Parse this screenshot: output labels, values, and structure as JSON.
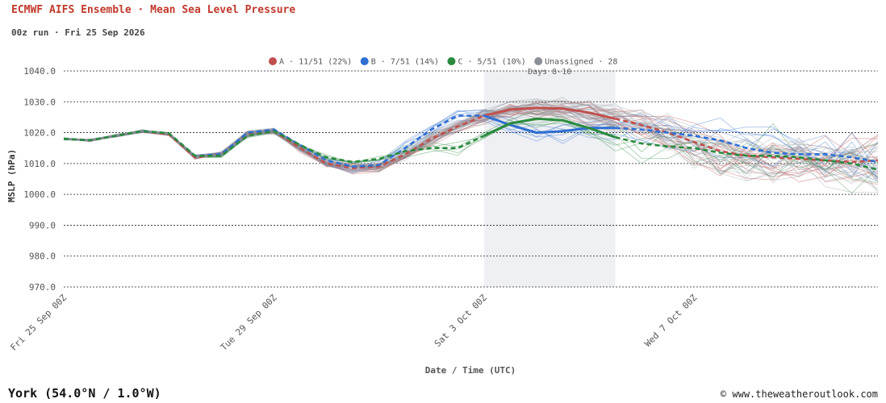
{
  "header": {
    "title": "ECMWF AIFS Ensemble · Mean Sea Level Pressure",
    "subtitle": "00z run · Fri 25 Sep 2026"
  },
  "footer": {
    "location": "York (54.0°N / 1.0°W)",
    "credit": "© www.theweatheroutlook.com"
  },
  "colors": {
    "A": "#c0504d",
    "B": "#2f6fd1",
    "C": "#2b8a3e",
    "unassigned": "#8a8f98",
    "shade": "#eef0f3"
  },
  "chart_data": {
    "type": "line",
    "ylabel": "MSLP (hPa)",
    "xlabel": "Date / Time (UTC)",
    "ylim": [
      970,
      1040
    ],
    "xlim": [
      "2026-09-25T00:00Z",
      "2026-10-10T12:00Z"
    ],
    "y_ticks": [
      "970.0",
      "980.0",
      "990.0",
      "1000.0",
      "1010.0",
      "1020.0",
      "1030.0",
      "1040.0"
    ],
    "x_ticks": [
      {
        "label": "Fri 25 Sep 00Z",
        "t": "2026-09-25T00:00Z"
      },
      {
        "label": "Tue 29 Sep 00Z",
        "t": "2026-09-29T00:00Z"
      },
      {
        "label": "Sat 3 Oct 00Z",
        "t": "2026-10-03T00:00Z"
      },
      {
        "label": "Wed 7 Oct 00Z",
        "t": "2026-10-07T00:00Z"
      }
    ],
    "grid": "horizontal dotted",
    "legend_placement": "top-center",
    "legend": [
      {
        "key": "A",
        "label": "A · 11/51 (22%)"
      },
      {
        "key": "B",
        "label": "B · 7/51 (14%)"
      },
      {
        "key": "C",
        "label": "C · 5/51 (10%)"
      },
      {
        "key": "unassigned",
        "label": "Unassigned · 28"
      }
    ],
    "shaded_region": {
      "label": "Days 8-10",
      "start": "2026-10-03T00:00Z",
      "end": "2026-10-05T12:00Z"
    },
    "cluster_means": [
      {
        "key": "A",
        "points": [
          [
            "2026-09-25T00:00Z",
            1018
          ],
          [
            "2026-09-25T12:00Z",
            1017.5
          ],
          [
            "2026-09-26T00:00Z",
            1019
          ],
          [
            "2026-09-26T12:00Z",
            1020.5
          ],
          [
            "2026-09-27T00:00Z",
            1019.5
          ],
          [
            "2026-09-27T12:00Z",
            1012
          ],
          [
            "2026-09-28T00:00Z",
            1013
          ],
          [
            "2026-09-28T12:00Z",
            1019.5
          ],
          [
            "2026-09-29T00:00Z",
            1020.5
          ],
          [
            "2026-09-29T12:00Z",
            1015
          ],
          [
            "2026-09-30T00:00Z",
            1010
          ],
          [
            "2026-09-30T12:00Z",
            1008.5
          ],
          [
            "2026-10-01T00:00Z",
            1009
          ],
          [
            "2026-10-01T12:00Z",
            1013
          ],
          [
            "2026-10-02T00:00Z",
            1018
          ],
          [
            "2026-10-02T12:00Z",
            1022
          ],
          [
            "2026-10-03T00:00Z",
            1025.5
          ],
          [
            "2026-10-03T12:00Z",
            1027.5
          ],
          [
            "2026-10-04T00:00Z",
            1028
          ],
          [
            "2026-10-04T12:00Z",
            1027.8
          ],
          [
            "2026-10-05T00:00Z",
            1026.5
          ],
          [
            "2026-10-05T12:00Z",
            1024.5
          ],
          [
            "2026-10-06T00:00Z",
            1022.5
          ],
          [
            "2026-10-06T12:00Z",
            1020
          ],
          [
            "2026-10-07T00:00Z",
            1017
          ],
          [
            "2026-10-07T12:00Z",
            1014
          ],
          [
            "2026-10-08T00:00Z",
            1012.5
          ],
          [
            "2026-10-08T12:00Z",
            1012
          ],
          [
            "2026-10-09T00:00Z",
            1011.5
          ],
          [
            "2026-10-09T12:00Z",
            1011
          ],
          [
            "2026-10-10T00:00Z",
            1010.5
          ],
          [
            "2026-10-10T12:00Z",
            1011
          ]
        ]
      },
      {
        "key": "B",
        "points": [
          [
            "2026-09-25T00:00Z",
            1018
          ],
          [
            "2026-09-25T12:00Z",
            1017.5
          ],
          [
            "2026-09-26T00:00Z",
            1019
          ],
          [
            "2026-09-26T12:00Z",
            1020.5
          ],
          [
            "2026-09-27T00:00Z",
            1019.8
          ],
          [
            "2026-09-27T12:00Z",
            1012.5
          ],
          [
            "2026-09-28T00:00Z",
            1013
          ],
          [
            "2026-09-28T12:00Z",
            1020
          ],
          [
            "2026-09-29T00:00Z",
            1021
          ],
          [
            "2026-09-29T12:00Z",
            1016
          ],
          [
            "2026-09-30T00:00Z",
            1011
          ],
          [
            "2026-09-30T12:00Z",
            1009
          ],
          [
            "2026-10-01T00:00Z",
            1009.5
          ],
          [
            "2026-10-01T12:00Z",
            1015
          ],
          [
            "2026-10-02T00:00Z",
            1021
          ],
          [
            "2026-10-02T12:00Z",
            1025.5
          ],
          [
            "2026-10-03T00:00Z",
            1025.5
          ],
          [
            "2026-10-03T12:00Z",
            1022.5
          ],
          [
            "2026-10-04T00:00Z",
            1020
          ],
          [
            "2026-10-04T12:00Z",
            1020.5
          ],
          [
            "2026-10-05T00:00Z",
            1021.5
          ],
          [
            "2026-10-05T12:00Z",
            1021.5
          ],
          [
            "2026-10-06T00:00Z",
            1021
          ],
          [
            "2026-10-06T12:00Z",
            1020
          ],
          [
            "2026-10-07T00:00Z",
            1019
          ],
          [
            "2026-10-07T12:00Z",
            1017.5
          ],
          [
            "2026-10-08T00:00Z",
            1015
          ],
          [
            "2026-10-08T12:00Z",
            1013.5
          ],
          [
            "2026-10-09T00:00Z",
            1013
          ],
          [
            "2026-10-09T12:00Z",
            1013
          ],
          [
            "2026-10-10T00:00Z",
            1012
          ],
          [
            "2026-10-10T12:00Z",
            1010.5
          ]
        ]
      },
      {
        "key": "C",
        "points": [
          [
            "2026-09-25T00:00Z",
            1018
          ],
          [
            "2026-09-25T12:00Z",
            1017.5
          ],
          [
            "2026-09-26T00:00Z",
            1019
          ],
          [
            "2026-09-26T12:00Z",
            1020.5
          ],
          [
            "2026-09-27T00:00Z",
            1019.8
          ],
          [
            "2026-09-27T12:00Z",
            1012.5
          ],
          [
            "2026-09-28T00:00Z",
            1012.5
          ],
          [
            "2026-09-28T12:00Z",
            1019
          ],
          [
            "2026-09-29T00:00Z",
            1020.5
          ],
          [
            "2026-09-29T12:00Z",
            1016
          ],
          [
            "2026-09-30T00:00Z",
            1012
          ],
          [
            "2026-09-30T12:00Z",
            1010.5
          ],
          [
            "2026-10-01T00:00Z",
            1011.5
          ],
          [
            "2026-10-01T12:00Z",
            1014
          ],
          [
            "2026-10-02T00:00Z",
            1015
          ],
          [
            "2026-10-02T12:00Z",
            1015
          ],
          [
            "2026-10-03T00:00Z",
            1019
          ],
          [
            "2026-10-03T12:00Z",
            1023
          ],
          [
            "2026-10-04T00:00Z",
            1024.5
          ],
          [
            "2026-10-04T12:00Z",
            1024
          ],
          [
            "2026-10-05T00:00Z",
            1021.5
          ],
          [
            "2026-10-05T12:00Z",
            1018.5
          ],
          [
            "2026-10-06T00:00Z",
            1016.5
          ],
          [
            "2026-10-06T12:00Z",
            1015.5
          ],
          [
            "2026-10-07T00:00Z",
            1015
          ],
          [
            "2026-10-07T12:00Z",
            1013.5
          ],
          [
            "2026-10-08T00:00Z",
            1012.5
          ],
          [
            "2026-10-08T12:00Z",
            1012.5
          ],
          [
            "2026-10-09T00:00Z",
            1012
          ],
          [
            "2026-10-09T12:00Z",
            1011
          ],
          [
            "2026-10-10T00:00Z",
            1010
          ],
          [
            "2026-10-10T12:00Z",
            1008
          ]
        ]
      }
    ]
  }
}
